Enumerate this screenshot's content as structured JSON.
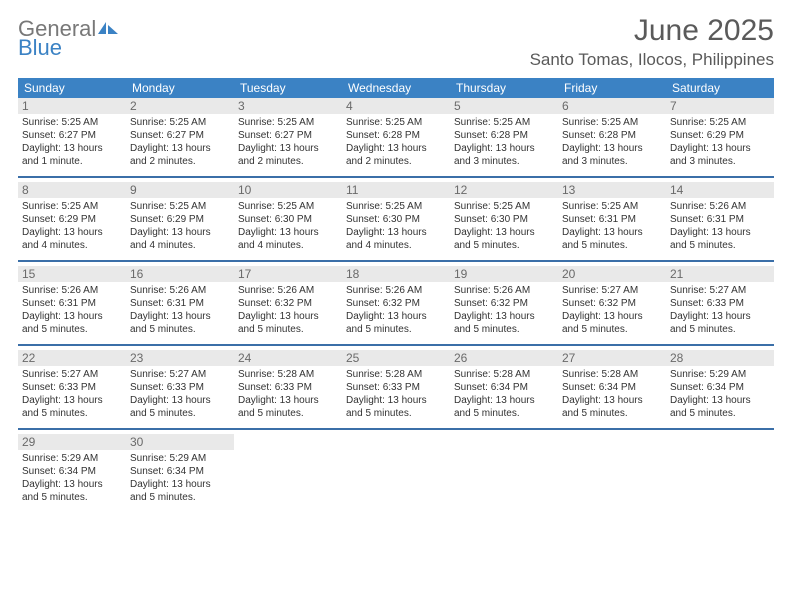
{
  "brand": {
    "text_general": "General",
    "text_blue": "Blue",
    "icon_color": "#3b82c4"
  },
  "header": {
    "month_title": "June 2025",
    "location": "Santo Tomas, Ilocos, Philippines"
  },
  "colors": {
    "weekday_header_bg": "#3b82c4",
    "weekday_header_fg": "#ffffff",
    "daynum_bg": "#e9e9e9",
    "daynum_fg": "#6a6a6a",
    "week_divider": "#3b6fa8",
    "title_color": "#5a5a5a",
    "body_text": "#333333",
    "background": "#ffffff"
  },
  "typography": {
    "month_title_fontsize": 30,
    "location_fontsize": 17,
    "weekday_fontsize": 12,
    "daynum_fontsize": 12,
    "dayinfo_fontsize": 10
  },
  "weekdays": [
    "Sunday",
    "Monday",
    "Tuesday",
    "Wednesday",
    "Thursday",
    "Friday",
    "Saturday"
  ],
  "weeks": [
    [
      {
        "num": "1",
        "sunrise": "Sunrise: 5:25 AM",
        "sunset": "Sunset: 6:27 PM",
        "daylight": "Daylight: 13 hours and 1 minute."
      },
      {
        "num": "2",
        "sunrise": "Sunrise: 5:25 AM",
        "sunset": "Sunset: 6:27 PM",
        "daylight": "Daylight: 13 hours and 2 minutes."
      },
      {
        "num": "3",
        "sunrise": "Sunrise: 5:25 AM",
        "sunset": "Sunset: 6:27 PM",
        "daylight": "Daylight: 13 hours and 2 minutes."
      },
      {
        "num": "4",
        "sunrise": "Sunrise: 5:25 AM",
        "sunset": "Sunset: 6:28 PM",
        "daylight": "Daylight: 13 hours and 2 minutes."
      },
      {
        "num": "5",
        "sunrise": "Sunrise: 5:25 AM",
        "sunset": "Sunset: 6:28 PM",
        "daylight": "Daylight: 13 hours and 3 minutes."
      },
      {
        "num": "6",
        "sunrise": "Sunrise: 5:25 AM",
        "sunset": "Sunset: 6:28 PM",
        "daylight": "Daylight: 13 hours and 3 minutes."
      },
      {
        "num": "7",
        "sunrise": "Sunrise: 5:25 AM",
        "sunset": "Sunset: 6:29 PM",
        "daylight": "Daylight: 13 hours and 3 minutes."
      }
    ],
    [
      {
        "num": "8",
        "sunrise": "Sunrise: 5:25 AM",
        "sunset": "Sunset: 6:29 PM",
        "daylight": "Daylight: 13 hours and 4 minutes."
      },
      {
        "num": "9",
        "sunrise": "Sunrise: 5:25 AM",
        "sunset": "Sunset: 6:29 PM",
        "daylight": "Daylight: 13 hours and 4 minutes."
      },
      {
        "num": "10",
        "sunrise": "Sunrise: 5:25 AM",
        "sunset": "Sunset: 6:30 PM",
        "daylight": "Daylight: 13 hours and 4 minutes."
      },
      {
        "num": "11",
        "sunrise": "Sunrise: 5:25 AM",
        "sunset": "Sunset: 6:30 PM",
        "daylight": "Daylight: 13 hours and 4 minutes."
      },
      {
        "num": "12",
        "sunrise": "Sunrise: 5:25 AM",
        "sunset": "Sunset: 6:30 PM",
        "daylight": "Daylight: 13 hours and 5 minutes."
      },
      {
        "num": "13",
        "sunrise": "Sunrise: 5:25 AM",
        "sunset": "Sunset: 6:31 PM",
        "daylight": "Daylight: 13 hours and 5 minutes."
      },
      {
        "num": "14",
        "sunrise": "Sunrise: 5:26 AM",
        "sunset": "Sunset: 6:31 PM",
        "daylight": "Daylight: 13 hours and 5 minutes."
      }
    ],
    [
      {
        "num": "15",
        "sunrise": "Sunrise: 5:26 AM",
        "sunset": "Sunset: 6:31 PM",
        "daylight": "Daylight: 13 hours and 5 minutes."
      },
      {
        "num": "16",
        "sunrise": "Sunrise: 5:26 AM",
        "sunset": "Sunset: 6:31 PM",
        "daylight": "Daylight: 13 hours and 5 minutes."
      },
      {
        "num": "17",
        "sunrise": "Sunrise: 5:26 AM",
        "sunset": "Sunset: 6:32 PM",
        "daylight": "Daylight: 13 hours and 5 minutes."
      },
      {
        "num": "18",
        "sunrise": "Sunrise: 5:26 AM",
        "sunset": "Sunset: 6:32 PM",
        "daylight": "Daylight: 13 hours and 5 minutes."
      },
      {
        "num": "19",
        "sunrise": "Sunrise: 5:26 AM",
        "sunset": "Sunset: 6:32 PM",
        "daylight": "Daylight: 13 hours and 5 minutes."
      },
      {
        "num": "20",
        "sunrise": "Sunrise: 5:27 AM",
        "sunset": "Sunset: 6:32 PM",
        "daylight": "Daylight: 13 hours and 5 minutes."
      },
      {
        "num": "21",
        "sunrise": "Sunrise: 5:27 AM",
        "sunset": "Sunset: 6:33 PM",
        "daylight": "Daylight: 13 hours and 5 minutes."
      }
    ],
    [
      {
        "num": "22",
        "sunrise": "Sunrise: 5:27 AM",
        "sunset": "Sunset: 6:33 PM",
        "daylight": "Daylight: 13 hours and 5 minutes."
      },
      {
        "num": "23",
        "sunrise": "Sunrise: 5:27 AM",
        "sunset": "Sunset: 6:33 PM",
        "daylight": "Daylight: 13 hours and 5 minutes."
      },
      {
        "num": "24",
        "sunrise": "Sunrise: 5:28 AM",
        "sunset": "Sunset: 6:33 PM",
        "daylight": "Daylight: 13 hours and 5 minutes."
      },
      {
        "num": "25",
        "sunrise": "Sunrise: 5:28 AM",
        "sunset": "Sunset: 6:33 PM",
        "daylight": "Daylight: 13 hours and 5 minutes."
      },
      {
        "num": "26",
        "sunrise": "Sunrise: 5:28 AM",
        "sunset": "Sunset: 6:34 PM",
        "daylight": "Daylight: 13 hours and 5 minutes."
      },
      {
        "num": "27",
        "sunrise": "Sunrise: 5:28 AM",
        "sunset": "Sunset: 6:34 PM",
        "daylight": "Daylight: 13 hours and 5 minutes."
      },
      {
        "num": "28",
        "sunrise": "Sunrise: 5:29 AM",
        "sunset": "Sunset: 6:34 PM",
        "daylight": "Daylight: 13 hours and 5 minutes."
      }
    ],
    [
      {
        "num": "29",
        "sunrise": "Sunrise: 5:29 AM",
        "sunset": "Sunset: 6:34 PM",
        "daylight": "Daylight: 13 hours and 5 minutes."
      },
      {
        "num": "30",
        "sunrise": "Sunrise: 5:29 AM",
        "sunset": "Sunset: 6:34 PM",
        "daylight": "Daylight: 13 hours and 5 minutes."
      },
      null,
      null,
      null,
      null,
      null
    ]
  ]
}
